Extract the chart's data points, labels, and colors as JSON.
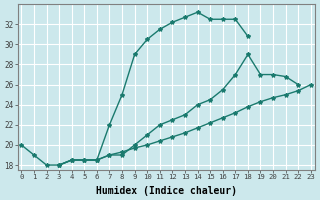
{
  "xlabel": "Humidex (Indice chaleur)",
  "background_color": "#cce8ec",
  "grid_color": "#ffffff",
  "line_color": "#1a7a6e",
  "line1_x": [
    0,
    1,
    2,
    3,
    4,
    5,
    6,
    7,
    8,
    9,
    10,
    11,
    12,
    13,
    14,
    15,
    16,
    17,
    18
  ],
  "line1_y": [
    20,
    19,
    18,
    18,
    18.5,
    18.5,
    18.5,
    22,
    25,
    29,
    30.5,
    31.5,
    32.2,
    32.7,
    33.2,
    32.5,
    32.5,
    32.5,
    30.8
  ],
  "line2_x": [
    3,
    4,
    5,
    6,
    7,
    8,
    9,
    10,
    11,
    12,
    13,
    14,
    15,
    16,
    17,
    18,
    19,
    20,
    21,
    22
  ],
  "line2_y": [
    18,
    18.5,
    18.5,
    18.5,
    19,
    19,
    20,
    21,
    22,
    22.5,
    23,
    24,
    24.5,
    25.5,
    27,
    29,
    27,
    27,
    26.8,
    26
  ],
  "line3_x": [
    3,
    4,
    5,
    6,
    7,
    8,
    9,
    10,
    11,
    12,
    13,
    14,
    15,
    16,
    17,
    18,
    19,
    20,
    21,
    22,
    23
  ],
  "line3_y": [
    18,
    18.5,
    18.5,
    18.5,
    19,
    19.3,
    19.7,
    20,
    20.4,
    20.8,
    21.2,
    21.7,
    22.2,
    22.7,
    23.2,
    23.8,
    24.3,
    24.7,
    25.0,
    25.4,
    26.0
  ],
  "ylim": [
    17.5,
    34
  ],
  "xlim": [
    -0.3,
    23.3
  ],
  "yticks": [
    18,
    20,
    22,
    24,
    26,
    28,
    30,
    32
  ],
  "xticks": [
    0,
    1,
    2,
    3,
    4,
    5,
    6,
    7,
    8,
    9,
    10,
    11,
    12,
    13,
    14,
    15,
    16,
    17,
    18,
    19,
    20,
    21,
    22,
    23
  ]
}
